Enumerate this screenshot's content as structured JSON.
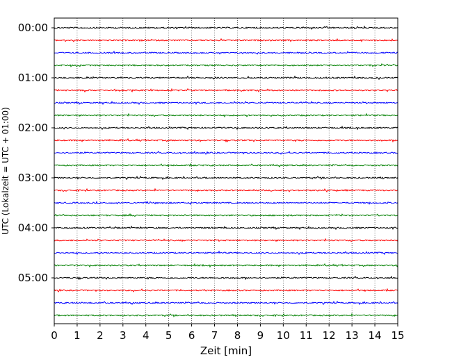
{
  "chart_data": {
    "type": "line",
    "title": "",
    "xlabel": "Zeit  [min]",
    "ylabel": "UTC (Lokalzeit = UTC + 01:00)",
    "xlim": [
      0,
      15
    ],
    "x_ticks": [
      0,
      1,
      2,
      3,
      4,
      5,
      6,
      7,
      8,
      9,
      10,
      11,
      12,
      13,
      14,
      15
    ],
    "y_tick_labels": [
      "00:00",
      "01:00",
      "02:00",
      "03:00",
      "04:00",
      "05:00"
    ],
    "grid": "vertical dotted",
    "trace_interval_minutes": 15,
    "trace_count": 24,
    "trace_colors": [
      "#000000",
      "#ff0000",
      "#0000ff",
      "#008000"
    ]
  }
}
